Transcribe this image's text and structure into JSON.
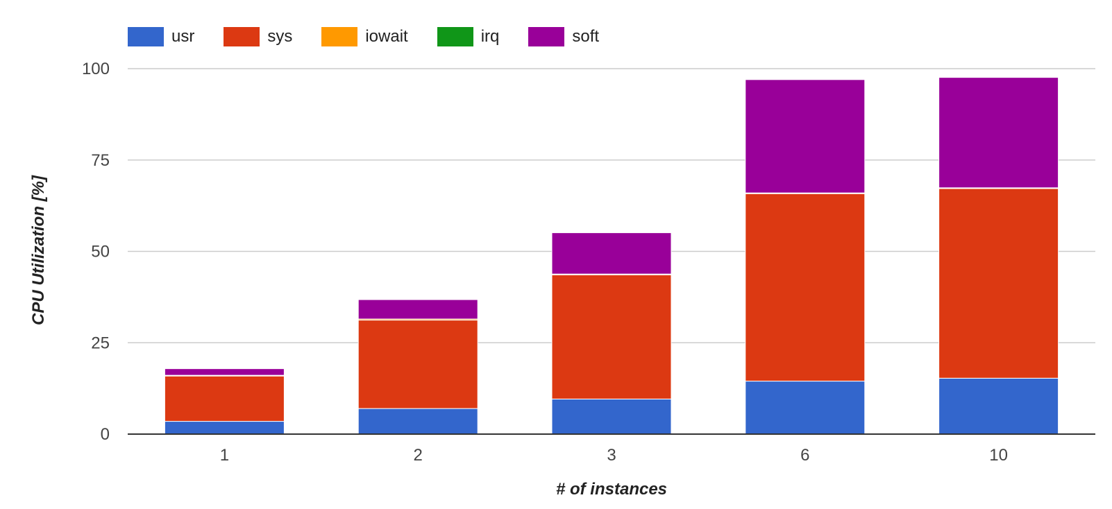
{
  "chart_data": {
    "type": "bar",
    "stacked": true,
    "title": "",
    "xlabel": "# of instances",
    "ylabel": "CPU Utilization [%]",
    "ylim": [
      0,
      100
    ],
    "yticks": [
      0,
      25,
      50,
      75,
      100
    ],
    "grid": true,
    "legend_position": "top-left",
    "categories": [
      "1",
      "2",
      "3",
      "6",
      "10"
    ],
    "series": [
      {
        "name": "usr",
        "color": "#3366cc",
        "values": [
          3.5,
          7.0,
          9.6,
          14.5,
          15.3
        ]
      },
      {
        "name": "sys",
        "color": "#dc3912",
        "values": [
          12.4,
          24.2,
          34.0,
          51.3,
          51.9
        ]
      },
      {
        "name": "iowait",
        "color": "#ff9900",
        "values": [
          0.2,
          0.3,
          0.2,
          0.2,
          0.2
        ]
      },
      {
        "name": "irq",
        "color": "#109618",
        "values": [
          0.0,
          0.0,
          0.0,
          0.0,
          0.0
        ]
      },
      {
        "name": "soft",
        "color": "#990099",
        "values": [
          1.8,
          5.3,
          11.3,
          31.0,
          30.2
        ]
      }
    ]
  }
}
